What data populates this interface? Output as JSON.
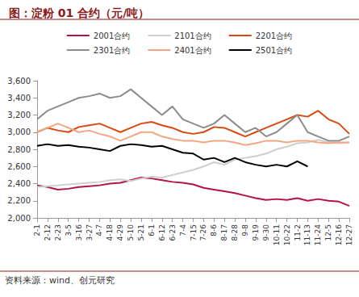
{
  "chart_data": {
    "type": "line",
    "title": "图：淀粉 01 合约（元/吨）",
    "source": "资料来源：wind、创元研究",
    "categories": [
      "2-1",
      "2-12",
      "2-23",
      "3-5",
      "3-16",
      "3-27",
      "4-7",
      "4-18",
      "4-29",
      "5-10",
      "5-21",
      "6-1",
      "6-12",
      "6-23",
      "7-4",
      "7-15",
      "7-26",
      "8-6",
      "8-17",
      "8-28",
      "9-8",
      "9-19",
      "9-30",
      "10-11",
      "10-22",
      "11-2",
      "11-13",
      "11-24",
      "12-5",
      "12-16",
      "12-27"
    ],
    "series": [
      {
        "name": "2001合约",
        "color": "#b5124a",
        "values": [
          2380,
          2360,
          2330,
          2340,
          2360,
          2370,
          2380,
          2400,
          2410,
          2440,
          2470,
          2460,
          2440,
          2420,
          2410,
          2390,
          2350,
          2330,
          2310,
          2290,
          2260,
          2230,
          2210,
          2220,
          2210,
          2230,
          2200,
          2220,
          2200,
          2190,
          2140
        ]
      },
      {
        "name": "2101合约",
        "color": "#cfcfcf",
        "values": [
          2360,
          2370,
          2380,
          2390,
          2400,
          2410,
          2420,
          2440,
          2450,
          2430,
          2460,
          2480,
          2470,
          2500,
          2530,
          2560,
          2600,
          2650,
          2620,
          2680,
          2700,
          2720,
          2750,
          2800,
          2830,
          2870,
          2880,
          2910,
          2880,
          2870,
          2880
        ]
      },
      {
        "name": "2201合约",
        "color": "#d9480f",
        "values": [
          3000,
          3050,
          3020,
          3000,
          3060,
          3080,
          3100,
          3050,
          3000,
          3050,
          3100,
          3120,
          3080,
          3050,
          3000,
          2980,
          3000,
          3060,
          3050,
          3000,
          2950,
          3000,
          3050,
          3100,
          3150,
          3200,
          3180,
          3250,
          3150,
          3100,
          2980
        ]
      },
      {
        "name": "2301合约",
        "color": "#8c8c8c",
        "values": [
          3150,
          3250,
          3300,
          3350,
          3400,
          3420,
          3450,
          3400,
          3420,
          3500,
          3400,
          3300,
          3200,
          3300,
          3150,
          3100,
          3050,
          3100,
          3200,
          3100,
          3000,
          3050,
          2950,
          3000,
          3100,
          3200,
          3000,
          2950,
          2900,
          2900,
          2950
        ]
      },
      {
        "name": "2401合约",
        "color": "#f4a582",
        "values": [
          3000,
          3050,
          3100,
          3050,
          3000,
          3020,
          2980,
          2950,
          2900,
          2950,
          3000,
          3000,
          2950,
          2920,
          2900,
          2900,
          2880,
          2900,
          2900,
          2880,
          2850,
          2870,
          2900,
          2900,
          2880,
          2900,
          2900,
          2880,
          2870,
          2880,
          2880
        ]
      },
      {
        "name": "2501合约",
        "color": "#000000",
        "values": [
          2840,
          2860,
          2840,
          2850,
          2830,
          2820,
          2800,
          2780,
          2840,
          2860,
          2850,
          2830,
          2840,
          2800,
          2760,
          2750,
          2680,
          2700,
          2650,
          2700,
          2650,
          2620,
          2600,
          2620,
          2600,
          2660,
          2600,
          null,
          null,
          null,
          null
        ]
      }
    ],
    "ylim": [
      2000,
      3600
    ],
    "yticks": [
      {
        "value": 2000,
        "label": "2,000"
      },
      {
        "value": 2200,
        "label": "2,200"
      },
      {
        "value": 2400,
        "label": "2,400"
      },
      {
        "value": 2600,
        "label": "2,600"
      },
      {
        "value": 2800,
        "label": "2,800"
      },
      {
        "value": 3000,
        "label": "3,000"
      },
      {
        "value": 3200,
        "label": "3,200"
      },
      {
        "value": 3400,
        "label": "3,400"
      },
      {
        "value": 3600,
        "label": "3,600"
      }
    ],
    "grid": false,
    "legend": "top"
  }
}
